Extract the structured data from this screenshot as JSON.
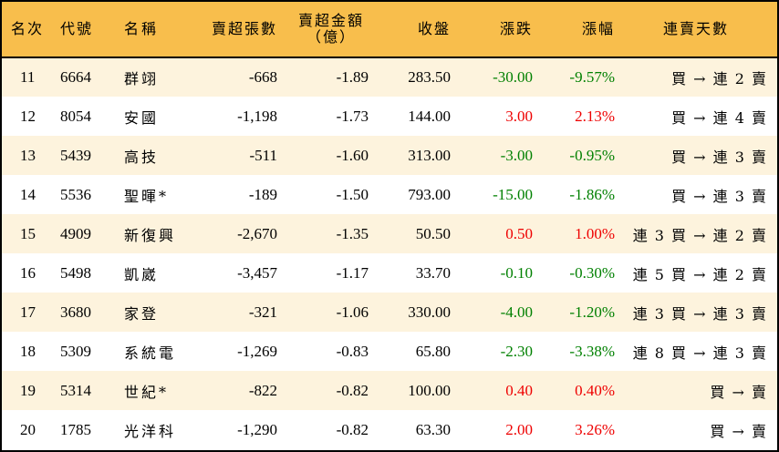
{
  "table": {
    "headers": {
      "rank": "名次",
      "code": "代號",
      "name": "名稱",
      "net_sell_shares": "賣超張數",
      "net_sell_amount_line1": "賣超金額",
      "net_sell_amount_line2": "（億）",
      "close": "收盤",
      "change": "漲跌",
      "change_pct": "漲幅",
      "streak": "連賣天數"
    },
    "colors": {
      "header_bg": "#f8be4c",
      "row_odd_bg": "#fdf3dd",
      "row_even_bg": "#ffffff",
      "up": "#ee0000",
      "down": "#008000"
    },
    "rows": [
      {
        "rank": "11",
        "code": "6664",
        "name": "群翊",
        "shares": "-668",
        "amount": "-1.89",
        "close": "283.50",
        "change": "-30.00",
        "pct": "-9.57%",
        "dir": "down",
        "streak": "買 → 連 2 賣"
      },
      {
        "rank": "12",
        "code": "8054",
        "name": "安國",
        "shares": "-1,198",
        "amount": "-1.73",
        "close": "144.00",
        "change": "3.00",
        "pct": "2.13%",
        "dir": "up",
        "streak": "買 → 連 4 賣"
      },
      {
        "rank": "13",
        "code": "5439",
        "name": "高技",
        "shares": "-511",
        "amount": "-1.60",
        "close": "313.00",
        "change": "-3.00",
        "pct": "-0.95%",
        "dir": "down",
        "streak": "買 → 連 3 賣"
      },
      {
        "rank": "14",
        "code": "5536",
        "name": "聖暉*",
        "shares": "-189",
        "amount": "-1.50",
        "close": "793.00",
        "change": "-15.00",
        "pct": "-1.86%",
        "dir": "down",
        "streak": "買 → 連 3 賣"
      },
      {
        "rank": "15",
        "code": "4909",
        "name": "新復興",
        "shares": "-2,670",
        "amount": "-1.35",
        "close": "50.50",
        "change": "0.50",
        "pct": "1.00%",
        "dir": "up",
        "streak": "連 3 買 → 連 2 賣"
      },
      {
        "rank": "16",
        "code": "5498",
        "name": "凱崴",
        "shares": "-3,457",
        "amount": "-1.17",
        "close": "33.70",
        "change": "-0.10",
        "pct": "-0.30%",
        "dir": "down",
        "streak": "連 5 買 → 連 2 賣"
      },
      {
        "rank": "17",
        "code": "3680",
        "name": "家登",
        "shares": "-321",
        "amount": "-1.06",
        "close": "330.00",
        "change": "-4.00",
        "pct": "-1.20%",
        "dir": "down",
        "streak": "連 3 買 → 連 3 賣"
      },
      {
        "rank": "18",
        "code": "5309",
        "name": "系統電",
        "shares": "-1,269",
        "amount": "-0.83",
        "close": "65.80",
        "change": "-2.30",
        "pct": "-3.38%",
        "dir": "down",
        "streak": "連 8 買 → 連 3 賣"
      },
      {
        "rank": "19",
        "code": "5314",
        "name": "世紀*",
        "shares": "-822",
        "amount": "-0.82",
        "close": "100.00",
        "change": "0.40",
        "pct": "0.40%",
        "dir": "up",
        "streak": "買 → 賣"
      },
      {
        "rank": "20",
        "code": "1785",
        "name": "光洋科",
        "shares": "-1,290",
        "amount": "-0.82",
        "close": "63.30",
        "change": "2.00",
        "pct": "3.26%",
        "dir": "up",
        "streak": "買 → 賣"
      }
    ]
  }
}
